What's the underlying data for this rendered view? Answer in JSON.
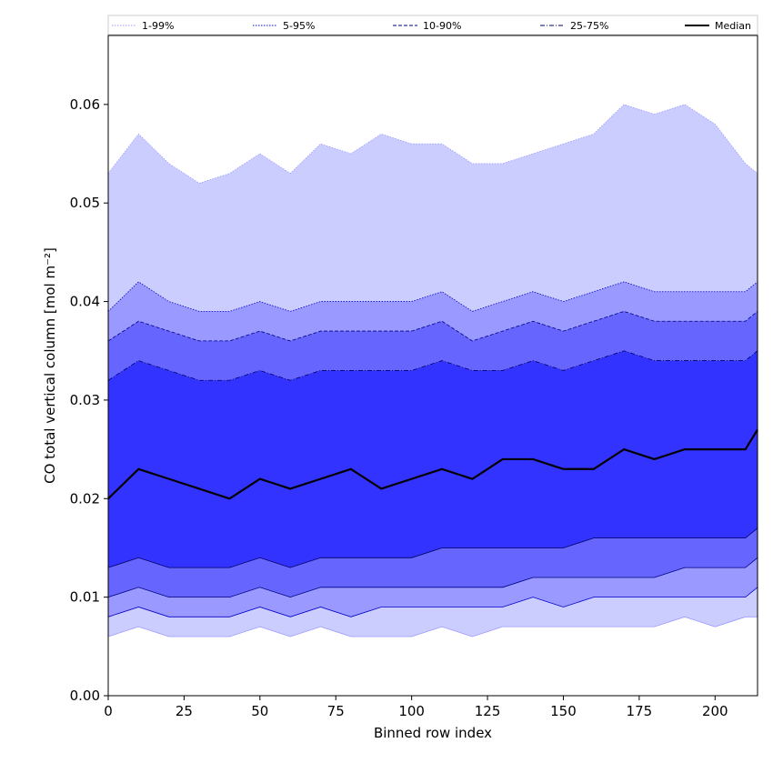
{
  "chart_data": {
    "type": "area",
    "xlabel": "Binned row index",
    "ylabel": "CO total vertical column [mol m⁻²]",
    "xlim": [
      0,
      214
    ],
    "ylim": [
      0,
      0.067
    ],
    "xticks": [
      0,
      25,
      50,
      75,
      100,
      125,
      150,
      175,
      200
    ],
    "yticks": [
      0.0,
      0.01,
      0.02,
      0.03,
      0.04,
      0.05,
      0.06
    ],
    "ytick_labels": [
      "0.00",
      "0.01",
      "0.02",
      "0.03",
      "0.04",
      "0.05",
      "0.06"
    ],
    "grid": false,
    "legend_position": "top, spanning width",
    "x": [
      0,
      10,
      20,
      30,
      40,
      50,
      60,
      70,
      80,
      90,
      100,
      110,
      120,
      130,
      140,
      150,
      160,
      170,
      180,
      190,
      200,
      210,
      214
    ],
    "series": [
      {
        "name": "1-99%",
        "color": "#cccdff",
        "line_style": "dotted",
        "lower": [
          0.006,
          0.007,
          0.006,
          0.006,
          0.006,
          0.007,
          0.006,
          0.007,
          0.006,
          0.006,
          0.006,
          0.007,
          0.006,
          0.007,
          0.007,
          0.007,
          0.007,
          0.007,
          0.007,
          0.008,
          0.007,
          0.008,
          0.008
        ],
        "upper": [
          0.053,
          0.057,
          0.054,
          0.052,
          0.053,
          0.055,
          0.053,
          0.056,
          0.055,
          0.057,
          0.056,
          0.056,
          0.054,
          0.054,
          0.055,
          0.056,
          0.057,
          0.06,
          0.059,
          0.06,
          0.058,
          0.054,
          0.053
        ]
      },
      {
        "name": "5-95%",
        "color": "#9999ff",
        "line_style": "dotted",
        "lower": [
          0.008,
          0.009,
          0.008,
          0.008,
          0.008,
          0.009,
          0.008,
          0.009,
          0.008,
          0.009,
          0.009,
          0.009,
          0.009,
          0.009,
          0.01,
          0.009,
          0.01,
          0.01,
          0.01,
          0.01,
          0.01,
          0.01,
          0.011
        ],
        "upper": [
          0.039,
          0.042,
          0.04,
          0.039,
          0.039,
          0.04,
          0.039,
          0.04,
          0.04,
          0.04,
          0.04,
          0.041,
          0.039,
          0.04,
          0.041,
          0.04,
          0.041,
          0.042,
          0.041,
          0.041,
          0.041,
          0.041,
          0.042
        ]
      },
      {
        "name": "10-90%",
        "color": "#6666ff",
        "line_style": "dashed",
        "lower": [
          0.01,
          0.011,
          0.01,
          0.01,
          0.01,
          0.011,
          0.01,
          0.011,
          0.011,
          0.011,
          0.011,
          0.011,
          0.011,
          0.011,
          0.012,
          0.012,
          0.012,
          0.012,
          0.012,
          0.013,
          0.013,
          0.013,
          0.014
        ],
        "upper": [
          0.036,
          0.038,
          0.037,
          0.036,
          0.036,
          0.037,
          0.036,
          0.037,
          0.037,
          0.037,
          0.037,
          0.038,
          0.036,
          0.037,
          0.038,
          0.037,
          0.038,
          0.039,
          0.038,
          0.038,
          0.038,
          0.038,
          0.039
        ]
      },
      {
        "name": "25-75%",
        "color": "#3333ff",
        "line_style": "dashdot",
        "lower": [
          0.013,
          0.014,
          0.013,
          0.013,
          0.013,
          0.014,
          0.013,
          0.014,
          0.014,
          0.014,
          0.014,
          0.015,
          0.015,
          0.015,
          0.015,
          0.015,
          0.016,
          0.016,
          0.016,
          0.016,
          0.016,
          0.016,
          0.017
        ],
        "upper": [
          0.032,
          0.034,
          0.033,
          0.032,
          0.032,
          0.033,
          0.032,
          0.033,
          0.033,
          0.033,
          0.033,
          0.034,
          0.033,
          0.033,
          0.034,
          0.033,
          0.034,
          0.035,
          0.034,
          0.034,
          0.034,
          0.034,
          0.035
        ]
      },
      {
        "name": "Median",
        "color": "#000000",
        "line_style": "solid",
        "values": [
          0.02,
          0.023,
          0.022,
          0.021,
          0.02,
          0.022,
          0.021,
          0.022,
          0.023,
          0.021,
          0.022,
          0.023,
          0.022,
          0.024,
          0.024,
          0.023,
          0.023,
          0.025,
          0.024,
          0.025,
          0.025,
          0.025,
          0.027
        ]
      }
    ]
  }
}
